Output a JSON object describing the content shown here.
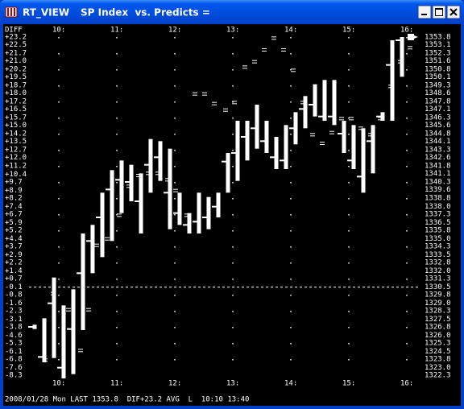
{
  "window": {
    "title": "RT_VIEW",
    "status_bar": "2008/01/28 Mon LAST 1353.8  DIF+23.2 AVG  L  10:10 13:40"
  },
  "chart_data": {
    "type": "ohlc",
    "title": "SP Index  vs. Predicts =",
    "y2label": "DIFF",
    "xlim": [
      9.5,
      16.25
    ],
    "xticks": [
      {
        "value": 10,
        "label": "10:"
      },
      {
        "value": 11,
        "label": "11:"
      },
      {
        "value": 12,
        "label": "12:"
      },
      {
        "value": 13,
        "label": "13:"
      },
      {
        "value": 14,
        "label": "14:"
      },
      {
        "value": 15,
        "label": "15:"
      },
      {
        "value": 16,
        "label": "16:"
      }
    ],
    "ylim": [
      1322.3,
      1353.8
    ],
    "yticks": [
      1353.8,
      1353.1,
      1352.3,
      1351.6,
      1350.8,
      1350.1,
      1349.3,
      1348.6,
      1347.8,
      1347.1,
      1346.3,
      1345.6,
      1344.8,
      1344.1,
      1343.3,
      1342.6,
      1341.8,
      1341.1,
      1340.3,
      1339.6,
      1338.8,
      {
        "value": 1338,
        "label": "1338.0"
      },
      1337.3,
      1336.5,
      1335.8,
      {
        "value": 1335,
        "label": "1335.0"
      },
      1334.3,
      1333.5,
      1332.8,
      {
        "value": 1332,
        "label": "1332.0"
      },
      1331.3,
      1330.5,
      1329.8,
      {
        "value": 1329,
        "label": "1329.0"
      },
      1328.3,
      1327.5,
      1326.8,
      {
        "value": 1326,
        "label": "1326.0"
      },
      1325.3,
      1324.5,
      1323.8,
      {
        "value": 1323,
        "label": "1323.0"
      },
      1322.3
    ],
    "y2lim": [
      -8.3,
      23.2
    ],
    "y2ticks": [
      {
        "value": 23.2,
        "label": "+23.2"
      },
      {
        "value": 22.5,
        "label": "+22.5"
      },
      {
        "value": 21.7,
        "label": "+21.7"
      },
      {
        "value": 21,
        "label": "+21.0"
      },
      {
        "value": 20.2,
        "label": "+20.2"
      },
      {
        "value": 19.5,
        "label": "+19.5"
      },
      {
        "value": 18.7,
        "label": "+18.7"
      },
      {
        "value": 18,
        "label": "+18.0"
      },
      {
        "value": 17.2,
        "label": "+17.2"
      },
      {
        "value": 16.5,
        "label": "+16.5"
      },
      {
        "value": 15.7,
        "label": "+15.7"
      },
      {
        "value": 15,
        "label": "+15.0"
      },
      {
        "value": 14.2,
        "label": "+14.2"
      },
      {
        "value": 13.5,
        "label": "+13.5"
      },
      {
        "value": 12.7,
        "label": "+12.7"
      },
      {
        "value": 12,
        "label": "+12.0"
      },
      {
        "value": 11.2,
        "label": "+11.2"
      },
      {
        "value": 10.4,
        "label": "+10.4"
      },
      {
        "value": 9.7,
        "label": "+9.7"
      },
      {
        "value": 8.9,
        "label": "+8.9"
      },
      {
        "value": 8.2,
        "label": "+8.2"
      },
      {
        "value": 7.4,
        "label": "+7.4"
      },
      {
        "value": 6.7,
        "label": "+6.7"
      },
      {
        "value": 5.9,
        "label": "+5.9"
      },
      {
        "value": 5.2,
        "label": "+5.2"
      },
      {
        "value": 4.4,
        "label": "+4.4"
      },
      {
        "value": 3.7,
        "label": "+3.7"
      },
      {
        "value": 2.9,
        "label": "+2.9"
      },
      {
        "value": 2.2,
        "label": "+2.2"
      },
      {
        "value": 1.4,
        "label": "+1.4"
      },
      {
        "value": 0.7,
        "label": "+0.7"
      },
      -0.1,
      -0.8,
      -1.6,
      -2.3,
      -3.1,
      -3.8,
      -4.6,
      -5.3,
      -6.1,
      -6.8,
      -7.6,
      -8.3
    ],
    "ref_line_y2": -0.1,
    "grid": true,
    "color": "#ffffff",
    "bars": {
      "x": [
        9.583,
        9.75,
        9.917,
        10.083,
        10.25,
        10.417,
        10.583,
        10.75,
        10.917,
        11.083,
        11.25,
        11.417,
        11.583,
        11.75,
        11.917,
        12.083,
        12.25,
        12.417,
        12.583,
        12.75,
        12.917,
        13.083,
        13.25,
        13.417,
        13.583,
        13.75,
        13.917,
        14.083,
        14.25,
        14.417,
        14.583,
        14.75,
        14.917,
        15.083,
        15.25,
        15.417,
        15.583,
        15.75,
        15.917
      ],
      "high": [
        1327.0,
        1327.6,
        1331.4,
        1328.8,
        1330.3,
        1335.5,
        1336.3,
        1339.3,
        1341.4,
        1342.3,
        1341.9,
        1341.1,
        1344.3,
        1344.1,
        1343.4,
        1339.3,
        1337.4,
        1339.3,
        1338.9,
        1339.3,
        1343.0,
        1346.0,
        1346.0,
        1347.5,
        1346.0,
        1344.5,
        1345.6,
        1346.8,
        1348.3,
        1349.4,
        1349.8,
        1349.8,
        1346.0,
        1345.6,
        1345.3,
        1345.6,
        1346.8,
        1353.5,
        1353.8
      ],
      "low": [
        1326.6,
        1323.5,
        1323.9,
        1322.0,
        1322.4,
        1326.5,
        1331.8,
        1333.3,
        1334.8,
        1337.4,
        1338.5,
        1335.5,
        1339.3,
        1340.4,
        1335.9,
        1336.3,
        1335.5,
        1335.5,
        1335.9,
        1337.0,
        1339.3,
        1340.4,
        1342.3,
        1343.4,
        1343.0,
        1341.5,
        1341.5,
        1343.8,
        1345.3,
        1346.4,
        1346.0,
        1345.6,
        1343.0,
        1341.5,
        1339.3,
        1341.1,
        1346.0,
        1346.0,
        1350.1
      ],
      "close": [
        1326.8,
        1324.0,
        1329.0,
        1323.0,
        1326.6,
        1331.8,
        1334.8,
        1337.0,
        1339.6,
        1340.5,
        1340.3,
        1338.5,
        1341.9,
        1342.6,
        1339.3,
        1337.4,
        1336.3,
        1336.6,
        1337.0,
        1338.0,
        1342.2,
        1343.0,
        1344.5,
        1345.3,
        1344.1,
        1342.6,
        1342.3,
        1345.3,
        1347.1,
        1347.5,
        1346.4,
        1346.4,
        1344.8,
        1342.3,
        1340.8,
        1344.1,
        1346.4,
        1351.2,
        1353.5
      ]
    },
    "predicts": {
      "x": [
        9.764,
        9.903,
        10.167,
        10.375,
        10.514,
        10.653,
        10.833,
        11.042,
        11.208,
        11.375,
        11.542,
        11.708,
        11.875,
        12.014,
        12.208,
        12.347,
        12.514,
        12.681,
        12.875,
        13.028,
        13.208,
        13.375,
        13.542,
        13.708,
        13.875,
        14.042,
        14.208,
        14.375,
        14.542,
        14.708,
        14.875,
        15.042,
        15.208,
        15.375,
        15.542,
        15.722,
        15.889,
        16.056
      ],
      "values": [
        1323.7,
        1329.9,
        1328.4,
        1324.6,
        1328.4,
        1334.4,
        1335.0,
        1337.2,
        1339.9,
        1340.9,
        1341.1,
        1341.1,
        1340.5,
        1339.5,
        1337.2,
        1348.5,
        1348.5,
        1347.6,
        1347.0,
        1347.7,
        1351.0,
        1351.5,
        1352.6,
        1353.7,
        1352.6,
        1350.7,
        1347.7,
        1344.7,
        1343.9,
        1344.9,
        1346.2,
        1346.2,
        1345.3,
        1344.7,
        1346.2,
        1349.2,
        1351.5,
        1352.8
      ]
    }
  }
}
